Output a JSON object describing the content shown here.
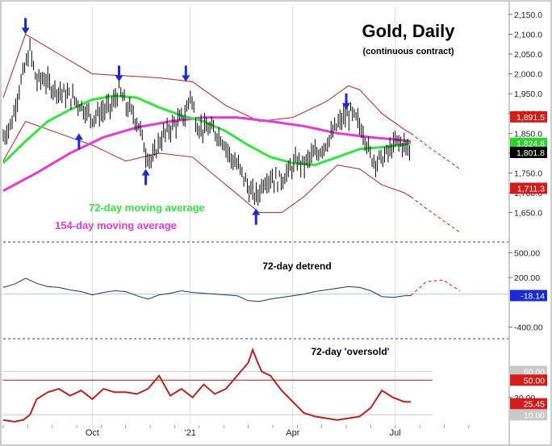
{
  "title": "Gold, Daily",
  "subtitle": "(continuous contract)",
  "colors": {
    "price_bar": "#000000",
    "ma72": "#33e63c",
    "ma154": "#e63ad8",
    "band": "#c0201b",
    "arrow": "#1a2bd1",
    "detrend": "#1e2d8c",
    "oscillator": "#c0201b",
    "grid": "#c8c8c8",
    "separator": "#1a2bd1"
  },
  "labels": {
    "ma72": "72-day moving average",
    "ma154": "154-day moving average",
    "detrend": "72-day detrend",
    "oversold": "72-day 'oversold'"
  },
  "x_axis": {
    "ticks": [
      {
        "label": "Oct",
        "day": 80
      },
      {
        "label": "'21",
        "day": 168
      },
      {
        "label": "Apr",
        "day": 260
      },
      {
        "label": "Jul",
        "day": 352
      }
    ]
  },
  "price_axis": {
    "ylim": [
      1580,
      2170
    ],
    "ticks": [
      "1,650.0",
      "1,700.0",
      "1,750.0",
      "1,800.0",
      "1,850.0",
      "1,900.0",
      "1,950.0",
      "2,000.0",
      "2,050.0",
      "2,100.0",
      "2,150.0"
    ],
    "tick_values": [
      1650,
      1700,
      1750,
      1800,
      1850,
      1900,
      1950,
      2000,
      2050,
      2100,
      2150
    ]
  },
  "detrend_axis": {
    "ylim": [
      -520,
      600
    ],
    "ticks": [
      "500.00",
      "200.00",
      "-400.00"
    ],
    "tick_values": [
      500,
      200,
      -400
    ]
  },
  "osc_axis": {
    "ylim": [
      0,
      95
    ],
    "ticks": [
      "30.00"
    ],
    "tick_values": [
      30
    ],
    "ref_lines": [
      {
        "value": 60,
        "label": "60.00",
        "box_color": "#c8c8c8",
        "text_color": "#ffffff"
      },
      {
        "value": 50,
        "label": "50.00",
        "box_color": "#d21d1d",
        "text_color": "#ffffff"
      },
      {
        "value": 10,
        "label": "10.00",
        "box_color": "#c8c8c8",
        "text_color": "#ffffff"
      }
    ]
  },
  "value_boxes": [
    {
      "panel": "price",
      "value": 1891.5,
      "label": "1,891.5",
      "color": "#d21d1d"
    },
    {
      "panel": "price",
      "value": 1824.8,
      "label": "1,824.8",
      "color": "#2ed12e"
    },
    {
      "panel": "price",
      "value": 1801.8,
      "label": "1,801.8",
      "color": "#000000"
    },
    {
      "panel": "price",
      "value": 1711.3,
      "label": "1,711.3",
      "color": "#d21d1d"
    },
    {
      "panel": "detrend",
      "value": -18.14,
      "label": "-18.14",
      "color": "#1a2bd1"
    },
    {
      "panel": "osc",
      "value": 25.45,
      "label": "25.45",
      "color": "#d21d1d"
    }
  ],
  "chart_data": [
    {
      "type": "line",
      "panel": "price",
      "title": "Gold, Daily",
      "subtitle": "(continuous contract)",
      "x_unit": "trading day index",
      "ylim": [
        1580,
        2170
      ],
      "series": [
        {
          "name": "Gold daily price (approx. closes)",
          "x": [
            0,
            8,
            14,
            20,
            24,
            30,
            36,
            42,
            48,
            54,
            62,
            70,
            76,
            80,
            86,
            92,
            98,
            104,
            110,
            116,
            122,
            128,
            134,
            140,
            146,
            152,
            158,
            164,
            168,
            174,
            180,
            186,
            192,
            198,
            204,
            210,
            216,
            222,
            228,
            234,
            240,
            246,
            252,
            258,
            264,
            270,
            276,
            282,
            288,
            294,
            300,
            306,
            312,
            318,
            324,
            330,
            336,
            342,
            348,
            354,
            360,
            366
          ],
          "y": [
            1840,
            1880,
            1960,
            2020,
            2060,
            1980,
            1990,
            1970,
            1960,
            1950,
            1940,
            1920,
            1900,
            1890,
            1900,
            1910,
            1920,
            1960,
            1920,
            1900,
            1870,
            1800,
            1780,
            1830,
            1850,
            1870,
            1880,
            1900,
            1950,
            1870,
            1860,
            1860,
            1850,
            1830,
            1790,
            1770,
            1740,
            1700,
            1690,
            1730,
            1740,
            1730,
            1740,
            1760,
            1780,
            1770,
            1790,
            1800,
            1820,
            1840,
            1870,
            1890,
            1900,
            1880,
            1850,
            1790,
            1780,
            1790,
            1810,
            1830,
            1820,
            1802
          ]
        },
        {
          "name": "72-day moving average",
          "x": [
            0,
            20,
            40,
            60,
            80,
            100,
            120,
            140,
            160,
            180,
            200,
            220,
            240,
            260,
            280,
            300,
            320,
            340,
            350,
            360,
            366
          ],
          "y": [
            1775,
            1830,
            1880,
            1910,
            1935,
            1945,
            1940,
            1915,
            1895,
            1880,
            1855,
            1820,
            1790,
            1775,
            1770,
            1790,
            1810,
            1815,
            1818,
            1822,
            1825
          ]
        },
        {
          "name": "154-day moving average",
          "x": [
            0,
            30,
            60,
            90,
            120,
            150,
            180,
            210,
            240,
            270,
            300,
            330,
            350,
            366
          ],
          "y": [
            1705,
            1750,
            1800,
            1840,
            1865,
            1880,
            1890,
            1890,
            1880,
            1868,
            1850,
            1840,
            1835,
            1830
          ]
        },
        {
          "name": "upper envelope",
          "x": [
            0,
            20,
            50,
            80,
            110,
            140,
            170,
            200,
            230,
            260,
            290,
            310,
            320,
            340,
            360,
            366
          ],
          "y": [
            1940,
            2100,
            2050,
            2000,
            1995,
            1990,
            1980,
            1920,
            1880,
            1890,
            1930,
            1970,
            1960,
            1900,
            1860,
            1850
          ]
        },
        {
          "name": "lower envelope",
          "x": [
            0,
            20,
            50,
            80,
            110,
            140,
            170,
            200,
            230,
            250,
            270,
            300,
            320,
            340,
            360,
            366
          ],
          "y": [
            1780,
            1880,
            1850,
            1820,
            1780,
            1800,
            1790,
            1720,
            1650,
            1650,
            1690,
            1770,
            1760,
            1720,
            1700,
            1690
          ]
        },
        {
          "name": "upper projection",
          "x": [
            366,
            380,
            395,
            410
          ],
          "y": [
            1850,
            1820,
            1790,
            1760
          ]
        },
        {
          "name": "lower projection",
          "x": [
            366,
            380,
            395,
            410
          ],
          "y": [
            1690,
            1660,
            1630,
            1600
          ]
        }
      ],
      "annotations": [
        {
          "type": "arrow-down",
          "day": 20,
          "value": 2100
        },
        {
          "type": "arrow-up",
          "day": 68,
          "value": 1850
        },
        {
          "type": "arrow-down",
          "day": 104,
          "value": 1980
        },
        {
          "type": "arrow-up",
          "day": 128,
          "value": 1760
        },
        {
          "type": "arrow-down",
          "day": 164,
          "value": 1980
        },
        {
          "type": "arrow-up",
          "day": 227,
          "value": 1660
        },
        {
          "type": "arrow-down",
          "day": 308,
          "value": 1910
        }
      ]
    },
    {
      "type": "line",
      "panel": "detrend",
      "title": "72-day detrend",
      "ylim": [
        -520,
        600
      ],
      "series": [
        {
          "name": "detrend",
          "x": [
            0,
            10,
            20,
            30,
            40,
            50,
            60,
            70,
            80,
            90,
            100,
            110,
            120,
            130,
            140,
            150,
            160,
            170,
            180,
            190,
            200,
            210,
            220,
            230,
            240,
            250,
            260,
            270,
            280,
            290,
            300,
            310,
            320,
            330,
            340,
            350,
            360,
            366
          ],
          "y": [
            80,
            120,
            190,
            130,
            90,
            80,
            50,
            30,
            -10,
            20,
            40,
            30,
            -20,
            -60,
            -10,
            10,
            40,
            20,
            10,
            0,
            -10,
            -20,
            -80,
            -90,
            -60,
            -40,
            -20,
            0,
            30,
            50,
            70,
            90,
            80,
            40,
            -30,
            -40,
            -20,
            -18
          ],
          "dashed": false
        },
        {
          "name": "detrend projection",
          "x": [
            366,
            380,
            395,
            410
          ],
          "y": [
            -18,
            150,
            170,
            40
          ],
          "dashed": true
        }
      ],
      "ref_line": 0
    },
    {
      "type": "line",
      "panel": "osc",
      "title": "72-day 'oversold'",
      "ylim": [
        0,
        95
      ],
      "series": [
        {
          "name": "72-day oversold",
          "x": [
            0,
            10,
            18,
            24,
            30,
            40,
            50,
            60,
            70,
            80,
            90,
            100,
            110,
            120,
            130,
            140,
            150,
            160,
            170,
            180,
            190,
            200,
            210,
            220,
            224,
            228,
            232,
            240,
            250,
            260,
            270,
            280,
            290,
            300,
            310,
            320,
            330,
            340,
            350,
            360,
            366
          ],
          "y": [
            4,
            2,
            4,
            10,
            28,
            36,
            40,
            32,
            38,
            28,
            40,
            36,
            36,
            34,
            40,
            55,
            32,
            40,
            30,
            45,
            34,
            40,
            55,
            70,
            85,
            72,
            60,
            55,
            38,
            25,
            12,
            8,
            6,
            4,
            6,
            8,
            18,
            38,
            30,
            25,
            25
          ]
        }
      ],
      "ref_lines": [
        60,
        50,
        10
      ]
    }
  ]
}
